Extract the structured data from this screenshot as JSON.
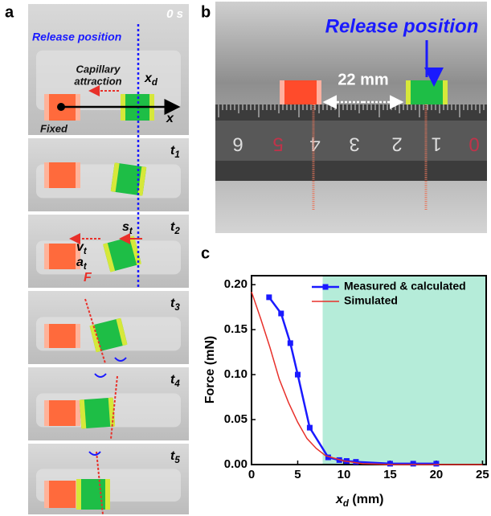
{
  "panels": {
    "a": {
      "label": "a",
      "time_label": "0 s",
      "release_position": "Release position",
      "capillary_attraction": [
        "Capillary",
        "attraction"
      ],
      "xd": {
        "text": "x",
        "sub": "d"
      },
      "fixed": "Fixed",
      "x_axis": "x",
      "frame_labels": [
        {
          "text": "t",
          "sub": "1"
        },
        {
          "text": "t",
          "sub": "2"
        },
        {
          "text": "t",
          "sub": "3"
        },
        {
          "text": "t",
          "sub": "4"
        },
        {
          "text": "t",
          "sub": "5"
        }
      ],
      "st": {
        "text": "s",
        "sub": "t"
      },
      "vt": {
        "text": "v",
        "sub": "t"
      },
      "at": {
        "text": "a",
        "sub": "t"
      },
      "force": "F"
    },
    "b": {
      "label": "b",
      "release_position": "Release position",
      "distance": "22 mm",
      "ruler_numbers": [
        "6",
        "5",
        "4",
        "3",
        "2",
        "1",
        "0"
      ]
    },
    "c": {
      "label": "c"
    }
  },
  "chart_data": {
    "type": "line",
    "xlabel": {
      "text": "x",
      "sub": "d",
      "unit": " (mm)"
    },
    "ylabel": "Force (mN)",
    "xlim": [
      0,
      25.4
    ],
    "ylim": [
      0,
      0.21
    ],
    "xticks": [
      0,
      5,
      10,
      15,
      20,
      25
    ],
    "yticks": [
      {
        "value": 0,
        "label": "0.00"
      },
      {
        "value": 0.05,
        "label": "0.05"
      },
      {
        "value": 0.1,
        "label": "0.10"
      },
      {
        "value": 0.15,
        "label": "0.15"
      },
      {
        "value": 0.2,
        "label": "0.20"
      }
    ],
    "shaded_from": 7.7,
    "shade_color": "#b5ecd9",
    "legend": "upper right",
    "series": [
      {
        "name": "Measured & calculated",
        "color": "#1a1aff",
        "markers": true,
        "x": [
          1.9,
          3.2,
          4.2,
          5.0,
          6.3,
          8.3,
          9.5,
          10.3,
          11.3,
          15,
          17.5,
          20
        ],
        "values": [
          0.186,
          0.168,
          0.135,
          0.1,
          0.041,
          0.008,
          0.005,
          0.004,
          0.003,
          0.001,
          0.001,
          0.001
        ]
      },
      {
        "name": "Simulated",
        "color": "#e8302a",
        "markers": false,
        "x": [
          0,
          1,
          2,
          3,
          4,
          5,
          6,
          7,
          8,
          10,
          12,
          15,
          20,
          25
        ],
        "values": [
          0.192,
          0.162,
          0.13,
          0.095,
          0.069,
          0.047,
          0.029,
          0.018,
          0.01,
          0.004,
          0.001,
          0,
          0,
          0
        ]
      }
    ]
  }
}
